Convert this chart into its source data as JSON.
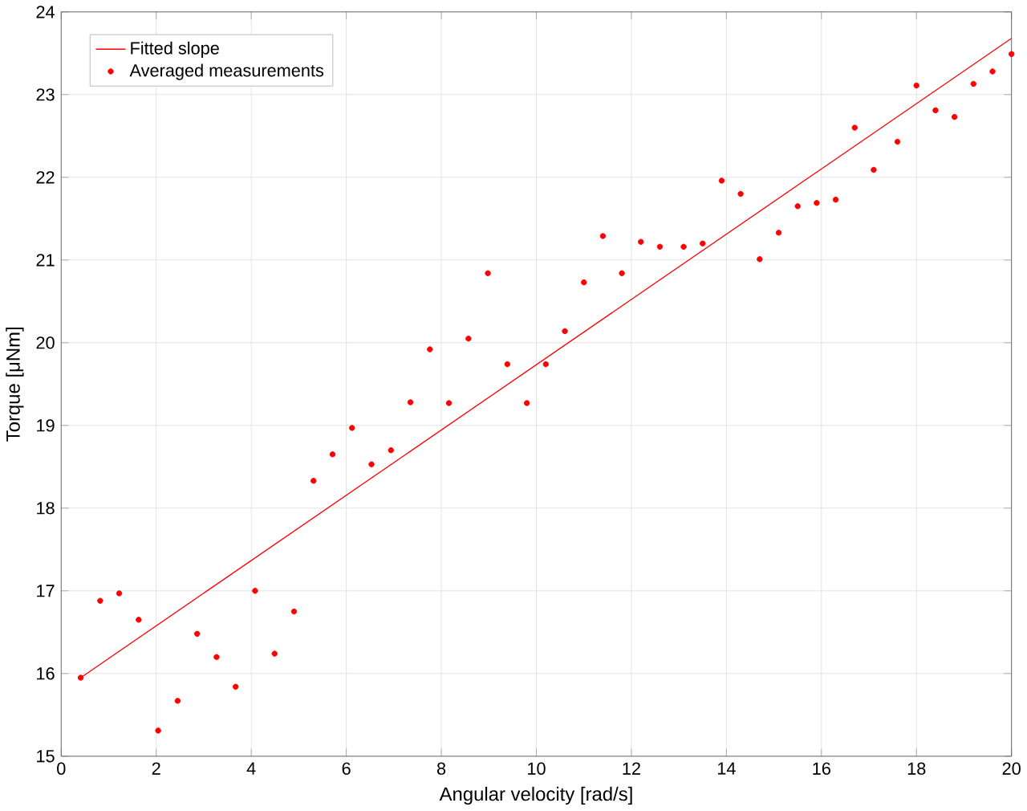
{
  "chart_data": {
    "type": "scatter",
    "xlabel": "Angular velocity [rad/s]",
    "ylabel": "Torque [μNm]",
    "xlim": [
      0,
      20
    ],
    "ylim": [
      15,
      24
    ],
    "xticks": [
      0,
      2,
      4,
      6,
      8,
      10,
      12,
      14,
      16,
      18,
      20
    ],
    "yticks": [
      15,
      16,
      17,
      18,
      19,
      20,
      21,
      22,
      23,
      24
    ],
    "grid": true,
    "legend": "top left",
    "series": [
      {
        "name": "Fitted slope",
        "type": "line",
        "color": "#ff0000",
        "marker": "none",
        "x": [
          0.41,
          20
        ],
        "values": [
          15.95,
          23.68
        ]
      },
      {
        "name": "Averaged measurements",
        "color": "#ff0000",
        "marker": "circle",
        "x": [
          0.41,
          0.82,
          1.22,
          1.63,
          2.04,
          2.45,
          2.86,
          3.27,
          3.67,
          4.08,
          4.49,
          4.9,
          5.31,
          5.71,
          6.12,
          6.53,
          6.94,
          7.35,
          7.76,
          8.16,
          8.57,
          8.98,
          9.39,
          9.8,
          10.2,
          10.6,
          11.0,
          11.4,
          11.8,
          12.2,
          12.6,
          13.1,
          13.5,
          13.9,
          14.3,
          14.7,
          15.1,
          15.5,
          15.9,
          16.3,
          16.7,
          17.1,
          17.6,
          18.0,
          18.4,
          18.8,
          19.2,
          19.6,
          20.0
        ],
        "values": [
          15.95,
          16.88,
          16.97,
          16.65,
          15.31,
          15.67,
          16.48,
          16.2,
          15.84,
          17.0,
          16.24,
          16.75,
          18.33,
          18.65,
          18.97,
          18.53,
          18.7,
          19.28,
          19.92,
          19.27,
          20.05,
          20.84,
          19.74,
          19.27,
          19.74,
          20.14,
          20.73,
          21.29,
          20.84,
          21.22,
          21.16,
          21.16,
          21.2,
          21.96,
          21.8,
          21.01,
          21.33,
          21.65,
          21.69,
          21.73,
          22.6,
          22.09,
          22.43,
          23.11,
          22.81,
          22.73,
          23.13,
          23.28,
          23.49
        ]
      }
    ]
  }
}
